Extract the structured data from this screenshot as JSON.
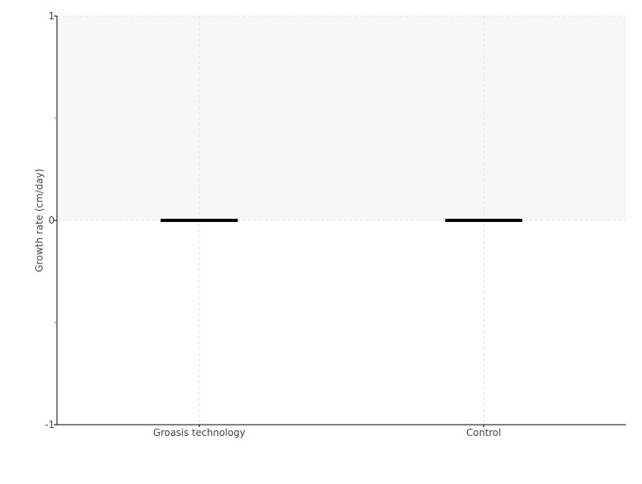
{
  "chart_data": {
    "type": "box",
    "title": "",
    "xlabel": "",
    "ylabel": "Growth rate (cm/day)",
    "categories": [
      "Groasis technology",
      "Control"
    ],
    "series": [
      {
        "values": [
          {
            "min": 0,
            "q1": 0,
            "median": 0,
            "q3": 0,
            "max": 0
          },
          {
            "min": 0,
            "q1": 0,
            "median": 0,
            "q3": 0,
            "max": 0
          }
        ]
      }
    ],
    "ylim": [
      -1,
      1
    ],
    "yticks": [
      "1",
      "0",
      "-1"
    ],
    "yminor_ticks": [
      0.5,
      -0.5
    ],
    "grid": true,
    "shaded_band": [
      0,
      1
    ],
    "colors": {
      "box": "#000000",
      "band": "#f7f7f7",
      "grid": "#e6e6e6",
      "minor_tick": "#e06060",
      "axis": "#000000"
    }
  }
}
